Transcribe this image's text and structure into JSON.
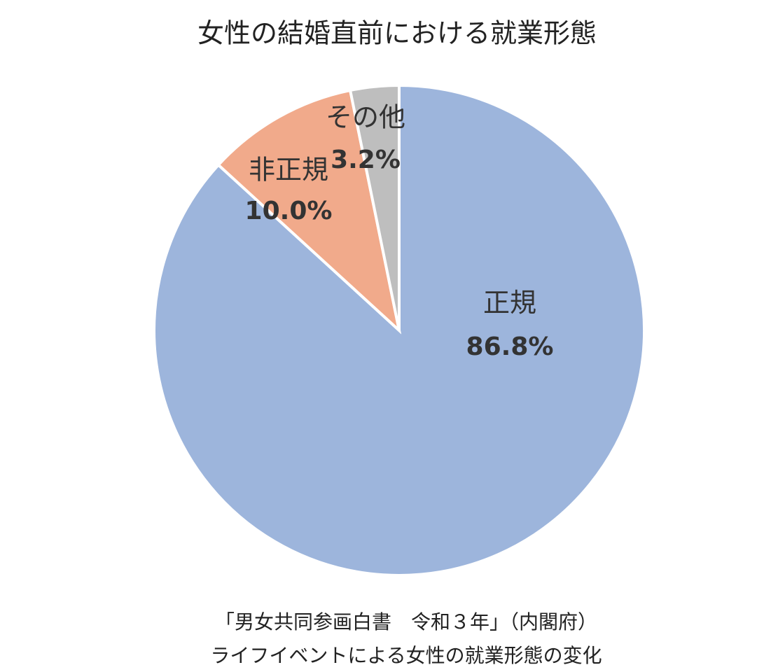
{
  "chart_data": {
    "type": "pie",
    "title": "女性の結婚直前における就業形態",
    "categories": [
      "正規",
      "非正規",
      "その他"
    ],
    "values": [
      86.8,
      10.0,
      3.2
    ],
    "value_labels": [
      "86.8%",
      "10.0%",
      "3.2%"
    ],
    "colors": [
      "#9db5dc",
      "#f1aa8b",
      "#bebebe"
    ],
    "source": [
      "「男女共同参画白書　令和３年」（内閣府）",
      "ライフイベントによる女性の就業形態の変化"
    ]
  }
}
